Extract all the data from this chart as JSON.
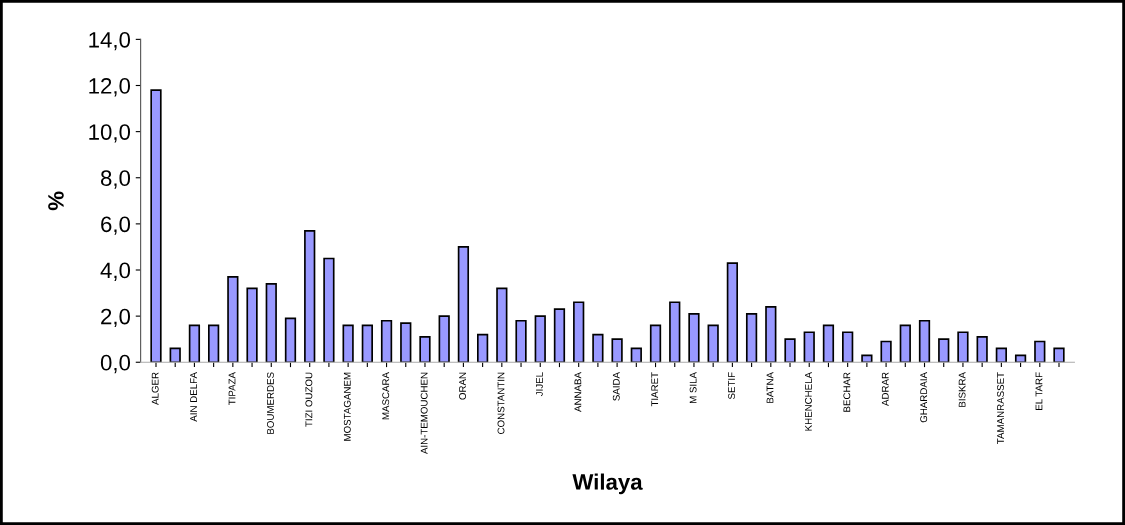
{
  "chart_data": {
    "type": "bar",
    "xlabel": "Wilaya",
    "ylabel": "%",
    "categories": [
      "ALGER",
      null,
      "AIN DELFA",
      null,
      "TIPAZA",
      null,
      "BOUMERDES",
      null,
      "TIZI OUZOU",
      null,
      "MOSTAGANEM",
      null,
      "MASCARA",
      null,
      "AIN-TEMOUCHEN",
      null,
      "ORAN",
      null,
      "CONSTANTIN",
      null,
      "JIJEL",
      null,
      "ANNABA",
      null,
      "SAIDA",
      null,
      "TIARET",
      null,
      "M SILA",
      null,
      "SETIF",
      null,
      "BATNA",
      null,
      "KHENCHELA",
      null,
      "BECHAR",
      null,
      "ADRAR",
      null,
      "GHARDAIA",
      null,
      "BISKRA",
      null,
      "TAMANRASSET",
      null,
      "EL TARF",
      null
    ],
    "values": [
      11.8,
      0.6,
      1.6,
      1.6,
      3.7,
      3.2,
      3.4,
      1.9,
      5.7,
      4.5,
      1.6,
      1.6,
      1.8,
      1.7,
      1.1,
      2.0,
      5.0,
      1.2,
      3.2,
      1.8,
      2.0,
      2.3,
      2.6,
      1.2,
      1.0,
      0.6,
      1.6,
      2.6,
      2.1,
      1.6,
      4.3,
      2.1,
      2.4,
      1.0,
      1.3,
      1.6,
      1.3,
      0.3,
      0.9,
      1.6,
      1.8,
      1.0,
      1.3,
      1.1,
      0.6,
      0.3,
      0.9,
      0.6
    ],
    "color": "#9999ff",
    "ylim": [
      0,
      14
    ],
    "yticks": [
      {
        "value": 0,
        "label": "0,0"
      },
      {
        "value": 2,
        "label": "2,0"
      },
      {
        "value": 4,
        "label": "4,0"
      },
      {
        "value": 6,
        "label": "6,0"
      },
      {
        "value": 8,
        "label": "8,0"
      },
      {
        "value": 10,
        "label": "10,0"
      },
      {
        "value": 12,
        "label": "12,0"
      },
      {
        "value": 14,
        "label": "14,0"
      }
    ],
    "grid": false,
    "legend": false
  }
}
